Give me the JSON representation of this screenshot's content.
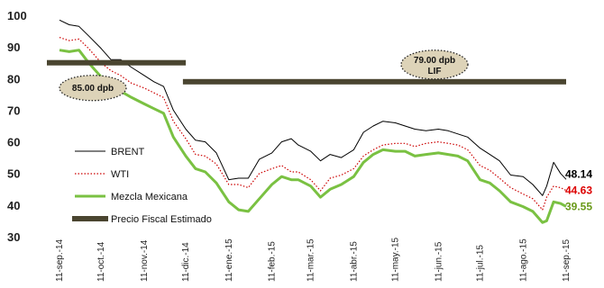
{
  "chart_data": {
    "type": "line",
    "ylim": [
      30,
      100
    ],
    "yticks": [
      30,
      40,
      50,
      60,
      70,
      80,
      90,
      100
    ],
    "x_dates": [
      "11-sep.-14",
      "11-oct.-14",
      "11-nov.-14",
      "11-dic.-14",
      "11-ene.-15",
      "11-feb.-15",
      "11-mar.-15",
      "11-abr.-15",
      "11-may.-15",
      "11-jun.-15",
      "11-jul.-15",
      "11-ago.-15",
      "11-sep.-15"
    ],
    "x_tick_labels": [
      "11-sep.-14",
      "11-oct.-14",
      "11-nov.-14",
      "11-dic.-14",
      "11-ene.-15",
      "11-feb.-15",
      "11-mar.-15",
      "11-abr.-15",
      "11-may.-15",
      "11-jun.-15",
      "11-jul.-15",
      "11-ago.-15",
      "11-sep.-15"
    ],
    "series": [
      {
        "name": "BRENT",
        "color": "#000000",
        "style": "solid",
        "points": [
          [
            "11-sep.-14",
            98.5
          ],
          [
            "18-sep.-14",
            97.0
          ],
          [
            "25-sep.-14",
            96.5
          ],
          [
            "02-oct.-14",
            93.5
          ],
          [
            "11-oct.-14",
            89.5
          ],
          [
            "18-oct.-14",
            86.0
          ],
          [
            "25-oct.-14",
            86.0
          ],
          [
            "02-nov.-14",
            83.5
          ],
          [
            "11-nov.-14",
            81.0
          ],
          [
            "18-nov.-14",
            79.0
          ],
          [
            "25-nov.-14",
            77.5
          ],
          [
            "02-dic.-14",
            70.0
          ],
          [
            "11-dic.-14",
            64.0
          ],
          [
            "18-dic.-14",
            60.5
          ],
          [
            "25-dic.-14",
            60.0
          ],
          [
            "02-ene.-15",
            56.5
          ],
          [
            "11-ene.-15",
            48.0
          ],
          [
            "18-ene.-15",
            48.5
          ],
          [
            "25-ene.-15",
            48.5
          ],
          [
            "02-feb.-15",
            54.5
          ],
          [
            "11-feb.-15",
            56.5
          ],
          [
            "18-feb.-15",
            60.0
          ],
          [
            "25-feb.-15",
            61.0
          ],
          [
            "02-mar.-15",
            59.0
          ],
          [
            "11-mar.-15",
            57.0
          ],
          [
            "18-mar.-15",
            54.0
          ],
          [
            "25-mar.-15",
            56.0
          ],
          [
            "02-abr.-15",
            55.0
          ],
          [
            "11-abr.-15",
            57.5
          ],
          [
            "18-abr.-15",
            63.0
          ],
          [
            "25-abr.-15",
            65.0
          ],
          [
            "02-may.-15",
            66.5
          ],
          [
            "11-may.-15",
            66.0
          ],
          [
            "18-may.-15",
            65.0
          ],
          [
            "25-may.-15",
            64.0
          ],
          [
            "02-jun.-15",
            63.5
          ],
          [
            "11-jun.-15",
            64.0
          ],
          [
            "18-jun.-15",
            63.5
          ],
          [
            "25-jun.-15",
            62.5
          ],
          [
            "02-jul.-15",
            61.5
          ],
          [
            "11-jul.-15",
            58.0
          ],
          [
            "18-jul.-15",
            56.0
          ],
          [
            "25-jul.-15",
            54.0
          ],
          [
            "02-ago.-15",
            49.5
          ],
          [
            "11-ago.-15",
            49.0
          ],
          [
            "18-ago.-15",
            46.5
          ],
          [
            "25-ago.-15",
            43.0
          ],
          [
            "28-ago.-15",
            46.0
          ],
          [
            "02-sep.-15",
            53.5
          ],
          [
            "07-sep.-15",
            50.0
          ],
          [
            "11-sep.-15",
            48.14
          ]
        ]
      },
      {
        "name": "WTI",
        "color": "#cc0000",
        "style": "dotted",
        "points": [
          [
            "11-sep.-14",
            93.0
          ],
          [
            "18-sep.-14",
            92.0
          ],
          [
            "25-sep.-14",
            92.5
          ],
          [
            "02-oct.-14",
            89.5
          ],
          [
            "11-oct.-14",
            85.0
          ],
          [
            "18-oct.-14",
            82.5
          ],
          [
            "25-oct.-14",
            81.0
          ],
          [
            "02-nov.-14",
            78.5
          ],
          [
            "11-nov.-14",
            77.0
          ],
          [
            "18-nov.-14",
            75.5
          ],
          [
            "25-nov.-14",
            74.0
          ],
          [
            "02-dic.-14",
            66.5
          ],
          [
            "11-dic.-14",
            61.0
          ],
          [
            "18-dic.-14",
            56.0
          ],
          [
            "25-dic.-14",
            55.5
          ],
          [
            "02-ene.-15",
            53.0
          ],
          [
            "11-ene.-15",
            46.5
          ],
          [
            "18-ene.-15",
            46.5
          ],
          [
            "25-ene.-15",
            45.5
          ],
          [
            "02-feb.-15",
            50.0
          ],
          [
            "11-feb.-15",
            51.5
          ],
          [
            "18-feb.-15",
            52.5
          ],
          [
            "25-feb.-15",
            50.5
          ],
          [
            "02-mar.-15",
            50.5
          ],
          [
            "11-mar.-15",
            48.0
          ],
          [
            "18-mar.-15",
            44.5
          ],
          [
            "25-mar.-15",
            48.5
          ],
          [
            "02-abr.-15",
            49.5
          ],
          [
            "11-abr.-15",
            51.5
          ],
          [
            "18-abr.-15",
            55.5
          ],
          [
            "25-abr.-15",
            57.5
          ],
          [
            "02-may.-15",
            59.0
          ],
          [
            "11-may.-15",
            59.5
          ],
          [
            "18-may.-15",
            59.5
          ],
          [
            "25-may.-15",
            58.5
          ],
          [
            "02-jun.-15",
            59.5
          ],
          [
            "11-jun.-15",
            60.0
          ],
          [
            "18-jun.-15",
            59.5
          ],
          [
            "25-jun.-15",
            59.0
          ],
          [
            "02-jul.-15",
            57.5
          ],
          [
            "11-jul.-15",
            52.5
          ],
          [
            "18-jul.-15",
            51.0
          ],
          [
            "25-jul.-15",
            48.5
          ],
          [
            "02-ago.-15",
            45.5
          ],
          [
            "11-ago.-15",
            43.5
          ],
          [
            "18-ago.-15",
            42.0
          ],
          [
            "25-ago.-15",
            38.5
          ],
          [
            "28-ago.-15",
            42.5
          ],
          [
            "02-sep.-15",
            46.0
          ],
          [
            "07-sep.-15",
            45.5
          ],
          [
            "11-sep.-15",
            44.63
          ]
        ]
      },
      {
        "name": "Mezcla Mexicana",
        "color": "#7ac142",
        "style": "solid-thick",
        "points": [
          [
            "11-sep.-14",
            89.0
          ],
          [
            "18-sep.-14",
            88.5
          ],
          [
            "25-sep.-14",
            89.0
          ],
          [
            "02-oct.-14",
            85.0
          ],
          [
            "11-oct.-14",
            80.5
          ],
          [
            "18-oct.-14",
            77.5
          ],
          [
            "25-oct.-14",
            76.0
          ],
          [
            "02-nov.-14",
            74.0
          ],
          [
            "11-nov.-14",
            72.0
          ],
          [
            "18-nov.-14",
            70.5
          ],
          [
            "25-nov.-14",
            69.0
          ],
          [
            "02-dic.-14",
            61.5
          ],
          [
            "11-dic.-14",
            55.5
          ],
          [
            "18-dic.-14",
            51.5
          ],
          [
            "25-dic.-14",
            50.5
          ],
          [
            "02-ene.-15",
            47.0
          ],
          [
            "11-ene.-15",
            41.0
          ],
          [
            "18-ene.-15",
            38.5
          ],
          [
            "25-ene.-15",
            38.0
          ],
          [
            "02-feb.-15",
            42.0
          ],
          [
            "11-feb.-15",
            46.5
          ],
          [
            "18-feb.-15",
            49.0
          ],
          [
            "25-feb.-15",
            48.0
          ],
          [
            "02-mar.-15",
            48.0
          ],
          [
            "11-mar.-15",
            46.0
          ],
          [
            "18-mar.-15",
            42.5
          ],
          [
            "25-mar.-15",
            45.0
          ],
          [
            "02-abr.-15",
            46.5
          ],
          [
            "11-abr.-15",
            49.0
          ],
          [
            "18-abr.-15",
            53.5
          ],
          [
            "25-abr.-15",
            56.0
          ],
          [
            "02-may.-15",
            57.5
          ],
          [
            "11-may.-15",
            57.0
          ],
          [
            "18-may.-15",
            57.0
          ],
          [
            "25-may.-15",
            55.5
          ],
          [
            "02-jun.-15",
            56.0
          ],
          [
            "11-jun.-15",
            56.5
          ],
          [
            "18-jun.-15",
            56.0
          ],
          [
            "25-jun.-15",
            55.5
          ],
          [
            "02-jul.-15",
            54.0
          ],
          [
            "11-jul.-15",
            48.0
          ],
          [
            "18-jul.-15",
            47.0
          ],
          [
            "25-jul.-15",
            44.5
          ],
          [
            "02-ago.-15",
            41.0
          ],
          [
            "11-ago.-15",
            39.5
          ],
          [
            "18-ago.-15",
            38.0
          ],
          [
            "25-ago.-15",
            34.5
          ],
          [
            "28-ago.-15",
            35.0
          ],
          [
            "02-sep.-15",
            41.0
          ],
          [
            "07-sep.-15",
            40.5
          ],
          [
            "11-sep.-15",
            39.55
          ]
        ]
      }
    ],
    "fiscal_price": {
      "name": "Precio Fiscal Estimado",
      "color": "#4a4530",
      "segments": [
        {
          "from": "11-sep.-14",
          "to": "11-dic.-14",
          "value": 85.0
        },
        {
          "from": "18-dic.-14",
          "to": "11-sep.-15",
          "value": 79.0
        }
      ]
    },
    "callouts": [
      {
        "lines": [
          "85.00 dpb"
        ],
        "value": 85.0
      },
      {
        "lines": [
          "79.00 dpb",
          "LIF"
        ],
        "value": 79.0
      }
    ],
    "end_labels": [
      {
        "text": "48.14",
        "value": 48.14,
        "color": "#000000"
      },
      {
        "text": "44.63",
        "value": 44.63,
        "color": "#dd0000"
      },
      {
        "text": "39.55",
        "value": 39.55,
        "color": "#6a9a1a"
      }
    ],
    "legend": [
      {
        "label": "BRENT",
        "color": "#000000",
        "style": "solid"
      },
      {
        "label": "WTI",
        "color": "#cc0000",
        "style": "dotted"
      },
      {
        "label": "Mezcla Mexicana",
        "color": "#7ac142",
        "style": "solid-thick"
      },
      {
        "label": "Precio Fiscal Estimado",
        "color": "#4a4530",
        "style": "bar"
      }
    ],
    "legend_position": "center-left",
    "grid": false
  }
}
